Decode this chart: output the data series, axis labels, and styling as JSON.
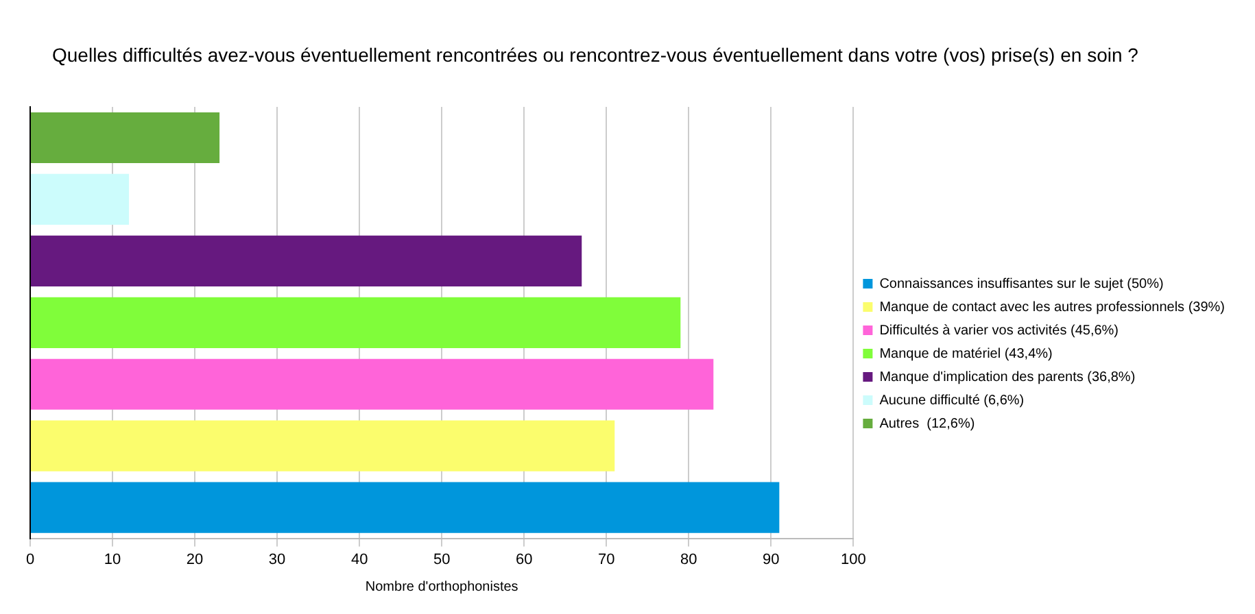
{
  "chart_data": {
    "type": "bar",
    "orientation": "horizontal",
    "title": "Quelles difficultés avez-vous éventuellement rencontrées ou rencontrez-vous éventuellement dans votre (vos) prise(s) en soin ?",
    "xlabel": "Nombre d'orthophonistes",
    "categories": [
      null,
      null,
      null,
      null,
      null,
      null,
      null
    ],
    "series": [
      {
        "name": "Connaissances insuffisantes sur le sujet (50%)",
        "color": "#0096dc",
        "values": [
          null,
          null,
          null,
          null,
          null,
          null,
          91
        ]
      },
      {
        "name": "Manque de contact avec les autres professionnels (39%)",
        "color": "#fbfd6d",
        "values": [
          null,
          null,
          null,
          null,
          null,
          71,
          null
        ]
      },
      {
        "name": "Difficultés à varier vos activités (45,6%)",
        "color": "#ff64d9",
        "values": [
          null,
          null,
          null,
          null,
          83,
          null,
          null
        ]
      },
      {
        "name": "Manque de matériel (43,4%)",
        "color": "#80fd3a",
        "values": [
          null,
          null,
          null,
          79,
          null,
          null,
          null
        ]
      },
      {
        "name": "Manque d'implication des parents (36,8%)",
        "color": "#66197f",
        "values": [
          null,
          null,
          67,
          null,
          null,
          null,
          null
        ]
      },
      {
        "name": "Aucune difficulté (6,6%)",
        "color": "#ccfcfc",
        "values": [
          null,
          12,
          null,
          null,
          null,
          null,
          null
        ]
      },
      {
        "name": "Autres  (12,6%)",
        "color": "#66ad3e",
        "values": [
          23,
          null,
          null,
          null,
          null,
          null,
          null
        ]
      }
    ],
    "xlim": [
      0,
      100
    ],
    "xticks": [
      0,
      10,
      20,
      30,
      40,
      50,
      60,
      70,
      80,
      90,
      100
    ],
    "grid": "x",
    "legend": "right",
    "tick_labels": "x"
  }
}
